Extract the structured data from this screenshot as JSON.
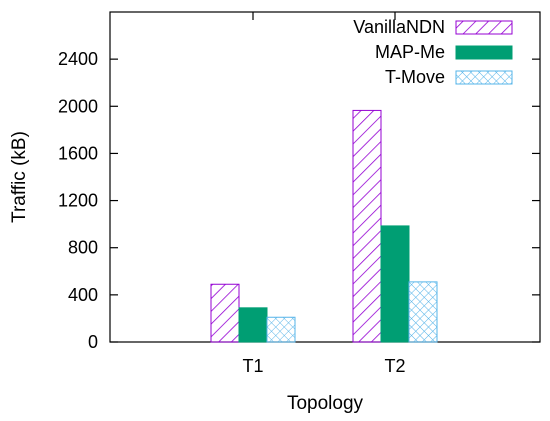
{
  "chart_data": {
    "type": "bar",
    "xlabel": "Topology",
    "ylabel": "Traffic (kB)",
    "categories": [
      "T1",
      "T2"
    ],
    "ylim": [
      0,
      2800
    ],
    "yticks": [
      0,
      400,
      800,
      1200,
      1600,
      2000,
      2400
    ],
    "grid": false,
    "legend_position": "top-right",
    "series": [
      {
        "name": "VanillaNDN",
        "values": [
          490,
          1965
        ],
        "color": "#9400d3",
        "fill": "diagonal-hatch"
      },
      {
        "name": "MAP-Me",
        "values": [
          290,
          985
        ],
        "color": "#009e73",
        "fill": "solid"
      },
      {
        "name": "T-Move",
        "values": [
          210,
          510
        ],
        "color": "#56b4e9",
        "fill": "crosshatch"
      }
    ]
  }
}
